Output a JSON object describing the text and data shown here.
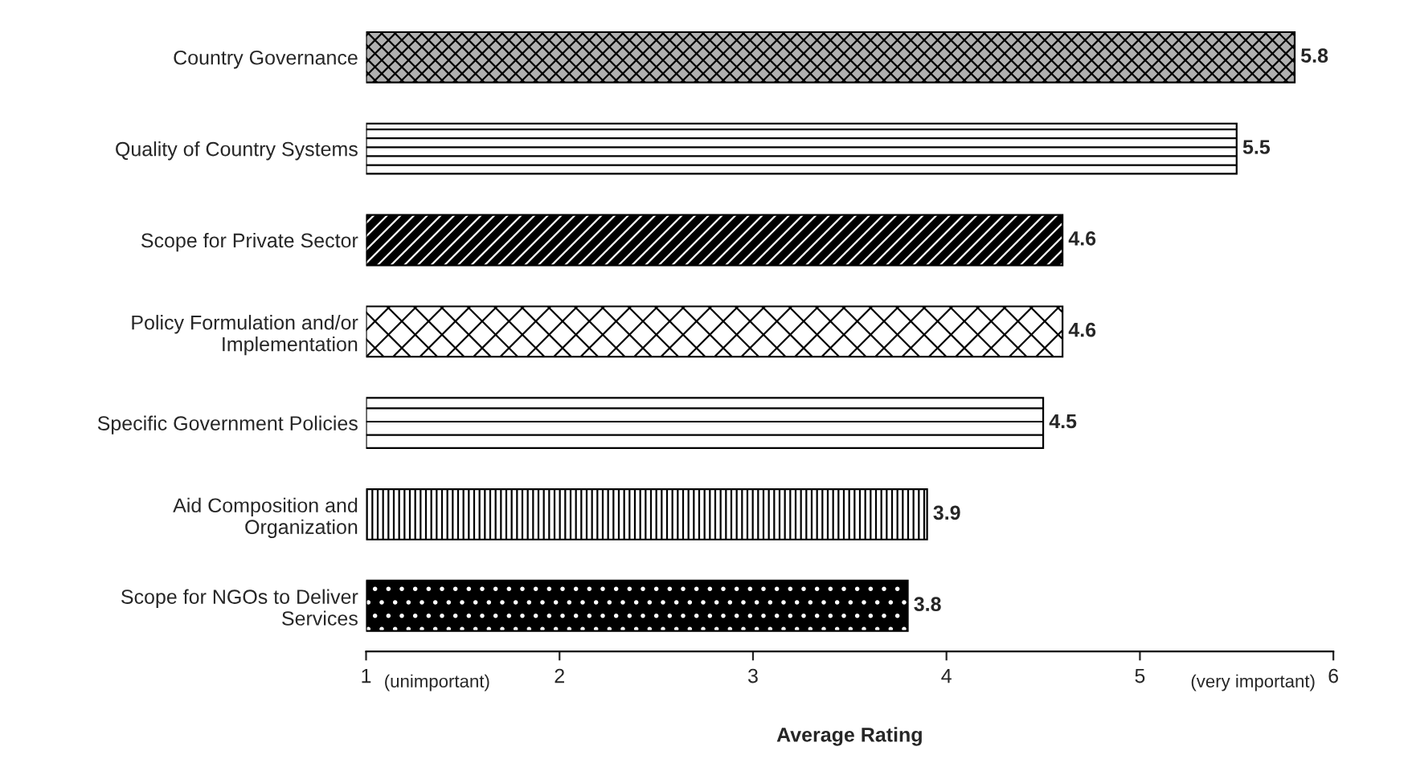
{
  "chart_data": {
    "type": "bar",
    "orientation": "horizontal",
    "categories": [
      "Country Governance",
      "Quality of Country Systems",
      "Scope for Private Sector",
      "Policy Formulation and/or\nImplementation",
      "Specific Government Policies",
      "Aid Composition and\nOrganization",
      "Scope for NGOs to Deliver\nServices"
    ],
    "values": [
      5.8,
      5.5,
      4.6,
      4.6,
      4.5,
      3.9,
      3.8
    ],
    "data_labels": true,
    "xlabel": "Average Rating",
    "xlim": [
      1,
      6
    ],
    "xticks": [
      1,
      2,
      3,
      4,
      5,
      6
    ],
    "annotations": [
      "(unimportant)",
      "(very important)"
    ],
    "grid": false,
    "legend": false
  }
}
